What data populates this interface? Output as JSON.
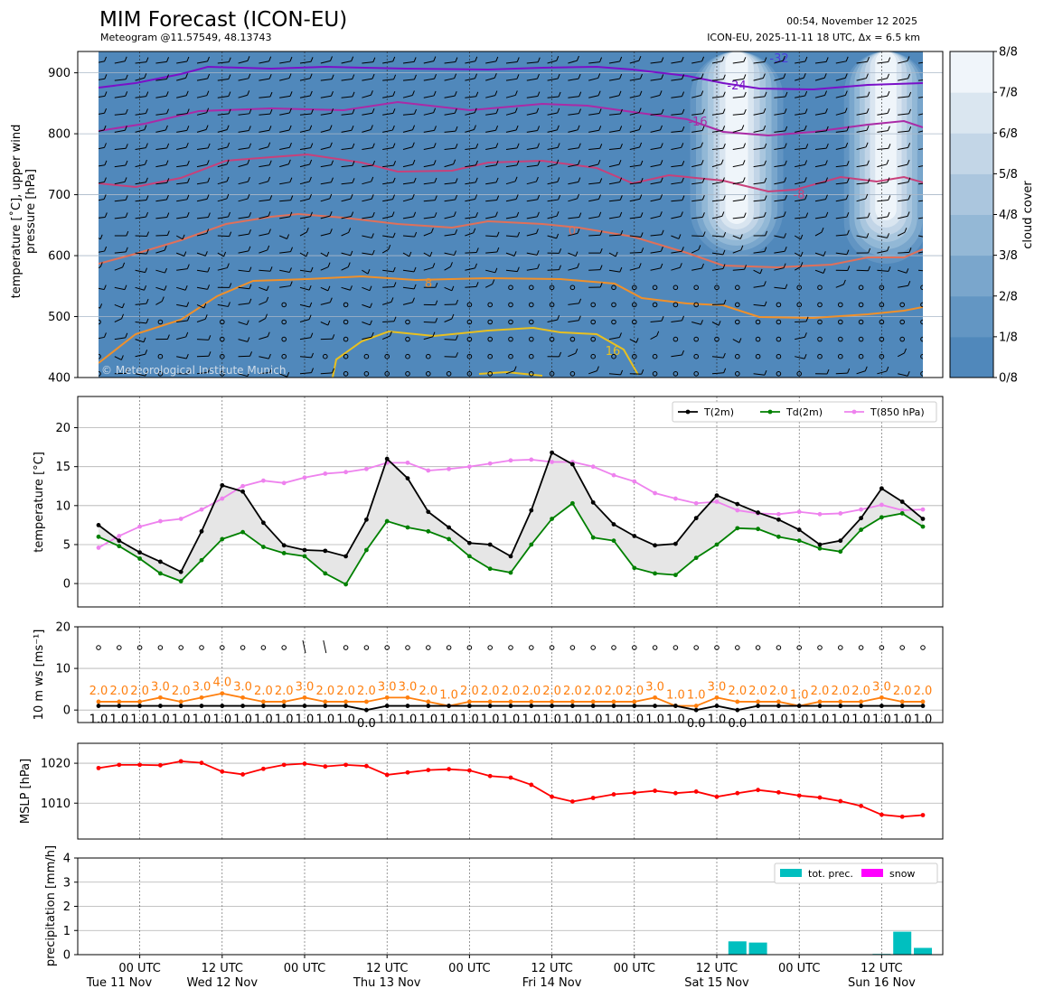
{
  "header": {
    "title": "MIM Forecast (ICON-EU)",
    "subtitle": "Meteogram @11.57549, 48.13743",
    "issued": "00:54, November 12 2025",
    "run": "ICON-EU, 2025-11-11 18 UTC, Δx = 6.5 km"
  },
  "colors": {
    "cloud_base": "#5088bb",
    "t2m": "#000000",
    "td2m": "#008000",
    "t850": "#ee82ee",
    "ws": "#000000",
    "gust": "#ff7f0e",
    "mslp": "#ff0000",
    "totprec": "#00bfbf",
    "snow": "#ff00ff"
  },
  "chart_data": [
    {
      "id": "upper_air",
      "type": "heatmap",
      "ylabel": "temperature [°C], upper wind\npressure [hPa]",
      "y_ticks": [
        400,
        500,
        600,
        700,
        800,
        900
      ],
      "ylim": [
        935,
        400
      ],
      "watermark": "© Meteorological Institute Munich",
      "colorbar": {
        "label": "cloud cover",
        "ticks": [
          "0/8",
          "1/8",
          "2/8",
          "3/8",
          "4/8",
          "5/8",
          "6/8",
          "7/8",
          "8/8"
        ],
        "colors": [
          "#5088bb",
          "#6396c3",
          "#7aa6cc",
          "#94b8d6",
          "#abc6de",
          "#c3d6e7",
          "#dae6f0",
          "#f0f5fa"
        ]
      },
      "isotherm_labels": [
        {
          "value": "-32",
          "color": "#4a3adc"
        },
        {
          "value": "-24",
          "color": "#7a10c8"
        },
        {
          "value": "-16",
          "color": "#aa2aa6"
        },
        {
          "value": "-8",
          "color": "#c8407a"
        },
        {
          "value": "0",
          "color": "#e0705a"
        },
        {
          "value": "8",
          "color": "#f0902a"
        },
        {
          "value": "16",
          "color": "#e8c020"
        }
      ]
    },
    {
      "id": "temperature",
      "type": "line",
      "ylabel": "temperature [°C]",
      "ylim": [
        -3,
        24
      ],
      "y_ticks": [
        0,
        5,
        10,
        15,
        20
      ],
      "series": [
        {
          "name": "T(2m)",
          "color": "#000000",
          "values": [
            7.5,
            5.5,
            4,
            2.8,
            1.5,
            6.7,
            12.6,
            11.8,
            7.8,
            4.9,
            4.3,
            4.2,
            3.5,
            8.2,
            16,
            13.5,
            9.2,
            7.2,
            5.2,
            5,
            3.5,
            9.4,
            16.8,
            15.3,
            10.4,
            7.6,
            6.1,
            4.9,
            5.1,
            8.4,
            11.3,
            10.2,
            9.1,
            8.2,
            6.9,
            5,
            5.5,
            8.4,
            12.2,
            10.5,
            8.3
          ]
        },
        {
          "name": "Td(2m)",
          "color": "#008000",
          "values": [
            6,
            4.8,
            3.2,
            1.3,
            0.3,
            3,
            5.7,
            6.6,
            4.7,
            3.9,
            3.5,
            1.3,
            -0.1,
            4.3,
            8,
            7.2,
            6.7,
            5.7,
            3.5,
            1.9,
            1.4,
            5,
            8.3,
            10.3,
            5.9,
            5.5,
            2,
            1.3,
            1.1,
            3.3,
            5,
            7.1,
            7,
            6,
            5.5,
            4.5,
            4.1,
            6.9,
            8.5,
            9,
            7.3
          ]
        },
        {
          "name": "T(850 hPa)",
          "color": "#ee82ee",
          "values": [
            4.6,
            6.1,
            7.3,
            8,
            8.3,
            9.5,
            10.9,
            12.5,
            13.2,
            12.9,
            13.6,
            14.1,
            14.3,
            14.7,
            15.5,
            15.5,
            14.5,
            14.7,
            15,
            15.4,
            15.8,
            15.9,
            15.6,
            15.6,
            15,
            13.9,
            13.1,
            11.6,
            10.9,
            10.3,
            10.5,
            9.4,
            9,
            8.9,
            9.2,
            8.9,
            9,
            9.5,
            10.1,
            9.4,
            9.5
          ]
        }
      ]
    },
    {
      "id": "wind",
      "type": "line",
      "ylabel": "10 m ws [ms⁻¹]",
      "ylim": [
        -3,
        20
      ],
      "y_ticks": [
        0,
        10,
        20
      ],
      "series": [
        {
          "name": "ws",
          "color": "#000000",
          "values": [
            1,
            1,
            1,
            1,
            1,
            1,
            1,
            1,
            1,
            1,
            1,
            1,
            1,
            0,
            1,
            1,
            1,
            1,
            1,
            1,
            1,
            1,
            1,
            1,
            1,
            1,
            1,
            1,
            1,
            0,
            1,
            0,
            1,
            1,
            1,
            1,
            1,
            1,
            1,
            1,
            1
          ],
          "labels": [
            "1.0",
            "1.0",
            "1.0",
            "1.0",
            "1.0",
            "1.0",
            "1.0",
            "1.0",
            "1.0",
            "1.0",
            "1.0",
            "1.0",
            "1.0",
            "0.0",
            "1.0",
            "1.0",
            "1.0",
            "1.0",
            "1.0",
            "1.0",
            "1.0",
            "1.0",
            "1.0",
            "1.0",
            "1.0",
            "1.0",
            "1.0",
            "1.0",
            "1.0",
            "0.0",
            "1.0",
            "0.0",
            "1.0",
            "1.0",
            "1.0",
            "1.0",
            "1.0",
            "1.0",
            "1.0",
            "1.0",
            "1.0"
          ]
        },
        {
          "name": "gust",
          "color": "#ff7f0e",
          "values": [
            2,
            2,
            2,
            3,
            2,
            3,
            4,
            3,
            2,
            2,
            3,
            2,
            2,
            2,
            3,
            3,
            2,
            1,
            2,
            2,
            2,
            2,
            2,
            2,
            2,
            2,
            2,
            3,
            1,
            1,
            3,
            2,
            2,
            2,
            1,
            2,
            2,
            2,
            3,
            2,
            2
          ],
          "labels": [
            "2.0",
            "2.0",
            "2.0",
            "3.0",
            "2.0",
            "3.0",
            "4.0",
            "3.0",
            "2.0",
            "2.0",
            "3.0",
            "2.0",
            "2.0",
            "2.0",
            "3.0",
            "3.0",
            "2.0",
            "1.0",
            "2.0",
            "2.0",
            "2.0",
            "2.0",
            "2.0",
            "2.0",
            "2.0",
            "2.0",
            "2.0",
            "3.0",
            "1.0",
            "1.0",
            "3.0",
            "2.0",
            "2.0",
            "2.0",
            "1.0",
            "2.0",
            "2.0",
            "2.0",
            "3.0",
            "2.0",
            "2.0"
          ]
        }
      ]
    },
    {
      "id": "pressure",
      "type": "line",
      "ylabel": "MSLP [hPa]",
      "ylim": [
        1001,
        1025
      ],
      "y_ticks": [
        1010,
        1020
      ],
      "series": [
        {
          "name": "MSLP",
          "color": "#ff0000",
          "values": [
            1018.8,
            1019.6,
            1019.6,
            1019.5,
            1020.5,
            1020.1,
            1017.9,
            1017.2,
            1018.6,
            1019.6,
            1019.9,
            1019.2,
            1019.6,
            1019.3,
            1017.1,
            1017.7,
            1018.3,
            1018.5,
            1018.2,
            1016.8,
            1016.4,
            1014.6,
            1011.6,
            1010.4,
            1011.3,
            1012.2,
            1012.6,
            1013.1,
            1012.5,
            1012.9,
            1011.6,
            1012.5,
            1013.3,
            1012.7,
            1011.9,
            1011.4,
            1010.5,
            1009.3,
            1007.1,
            1006.6,
            1007.0
          ]
        }
      ]
    },
    {
      "id": "precipitation",
      "type": "bar",
      "ylabel": "precipitation [mm/h]",
      "ylim": [
        0,
        4
      ],
      "y_ticks": [
        0,
        1,
        2,
        3,
        4
      ],
      "series": [
        {
          "name": "tot. prec.",
          "color": "#00bfbf",
          "values": [
            0,
            0,
            0,
            0,
            0,
            0,
            0,
            0,
            0,
            0,
            0,
            0,
            0,
            0,
            0,
            0,
            0,
            0,
            0,
            0,
            0,
            0,
            0,
            0,
            0,
            0,
            0,
            0,
            0,
            0,
            0,
            0.55,
            0.5,
            0,
            0,
            0,
            0,
            0,
            0.03,
            0.95,
            0.28
          ]
        },
        {
          "name": "snow",
          "color": "#ff00ff",
          "values": [
            0,
            0,
            0,
            0,
            0,
            0,
            0,
            0,
            0,
            0,
            0,
            0,
            0,
            0,
            0,
            0,
            0,
            0,
            0,
            0,
            0,
            0,
            0,
            0,
            0,
            0,
            0,
            0,
            0,
            0,
            0,
            0,
            0,
            0,
            0,
            0,
            0,
            0,
            0,
            0,
            0
          ]
        }
      ],
      "x_tick_labels": [
        {
          "time": "00 UTC",
          "day": "Tue 11 Nov"
        },
        {
          "time": "12 UTC",
          "day": "Wed 12 Nov"
        },
        {
          "time": "00 UTC",
          "day": ""
        },
        {
          "time": "12 UTC",
          "day": "Thu 13 Nov"
        },
        {
          "time": "00 UTC",
          "day": ""
        },
        {
          "time": "12 UTC",
          "day": "Fri 14 Nov"
        },
        {
          "time": "00 UTC",
          "day": ""
        },
        {
          "time": "12 UTC",
          "day": "Sat 15 Nov"
        },
        {
          "time": "00 UTC",
          "day": ""
        },
        {
          "time": "12 UTC",
          "day": "Sun 16 Nov"
        }
      ]
    }
  ]
}
